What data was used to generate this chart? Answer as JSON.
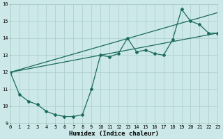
{
  "xlabel": "Humidex (Indice chaleur)",
  "xlim": [
    0,
    23
  ],
  "ylim": [
    9,
    16
  ],
  "yticks": [
    9,
    10,
    11,
    12,
    13,
    14,
    15,
    16
  ],
  "xticks": [
    0,
    1,
    2,
    3,
    4,
    5,
    6,
    7,
    8,
    9,
    10,
    11,
    12,
    13,
    14,
    15,
    16,
    17,
    18,
    19,
    20,
    21,
    22,
    23
  ],
  "bg_color": "#cce8e8",
  "line_color": "#1a6b5a",
  "grid_color": "#aacccc",
  "line1_x": [
    0,
    1,
    2,
    3,
    4,
    5,
    6,
    7,
    8,
    9,
    10,
    11,
    12,
    13,
    14,
    15,
    16,
    17,
    18,
    19,
    20,
    21,
    22,
    23
  ],
  "line1_y": [
    12.0,
    10.7,
    10.3,
    10.1,
    9.7,
    9.5,
    9.4,
    9.4,
    9.5,
    11.0,
    13.0,
    12.9,
    13.1,
    14.0,
    13.2,
    13.3,
    13.1,
    13.0,
    13.9,
    15.7,
    15.0,
    14.8,
    14.3,
    14.3
  ],
  "line2_x": [
    0,
    23
  ],
  "line2_y": [
    12.0,
    14.3
  ],
  "line3_x": [
    0,
    23
  ],
  "line3_y": [
    12.0,
    15.5
  ]
}
